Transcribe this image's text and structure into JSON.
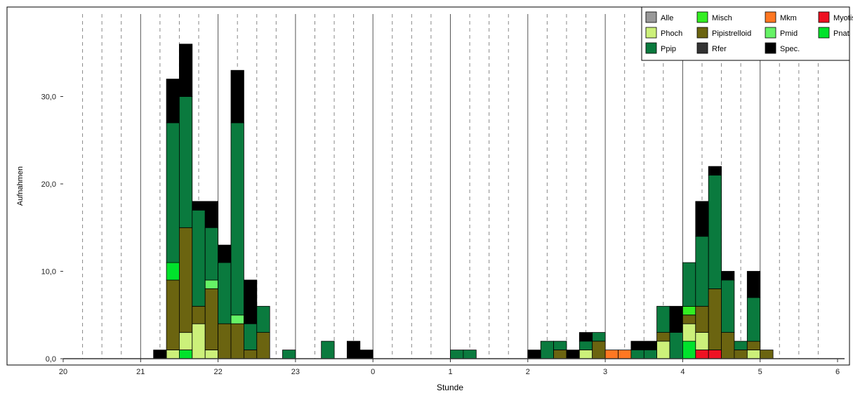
{
  "chart_data": {
    "type": "bar",
    "stacked": true,
    "title": "",
    "xlabel": "Stunde",
    "ylabel": "Aufnahmen",
    "ylim": [
      0,
      38
    ],
    "x_ticks": [
      "20",
      "21",
      "22",
      "23",
      "0",
      "1",
      "2",
      "3",
      "4",
      "5",
      "6"
    ],
    "y_ticks": [
      "0,0",
      "10,0",
      "20,0",
      "30,0"
    ],
    "y_tick_values": [
      0,
      10,
      20,
      30
    ],
    "grid": "vertical: solid at full hours, dashed every 15 min",
    "legend_position": "top-right",
    "legend": [
      {
        "name": "Alle",
        "color": "#999999"
      },
      {
        "name": "Misch",
        "color": "#33ee22"
      },
      {
        "name": "Mkm",
        "color": "#ff7722"
      },
      {
        "name": "Myotis",
        "color": "#ee1122"
      },
      {
        "name": "Phoch",
        "color": "#ccf07a"
      },
      {
        "name": "Pipistrelloid",
        "color": "#6b6410"
      },
      {
        "name": "Pmid",
        "color": "#66f266"
      },
      {
        "name": "Pnat",
        "color": "#00e22c"
      },
      {
        "name": "Ppip",
        "color": "#0a7a3e"
      },
      {
        "name": "Rfer",
        "color": "#333333"
      },
      {
        "name": "Spec.",
        "color": "#000000"
      }
    ],
    "bin_minutes": 10,
    "x_start_hour": 20,
    "bins": [
      {
        "t": "21:10",
        "stack": [
          [
            "Spec.",
            1
          ]
        ]
      },
      {
        "t": "21:20",
        "stack": [
          [
            "Phoch",
            1
          ],
          [
            "Pipistrelloid",
            8
          ],
          [
            "Pnat",
            2
          ],
          [
            "Ppip",
            16
          ],
          [
            "Spec.",
            5
          ]
        ]
      },
      {
        "t": "21:30",
        "stack": [
          [
            "Pnat",
            1
          ],
          [
            "Phoch",
            2
          ],
          [
            "Pipistrelloid",
            12
          ],
          [
            "Ppip",
            15
          ],
          [
            "Spec.",
            6
          ]
        ]
      },
      {
        "t": "21:40",
        "stack": [
          [
            "Phoch",
            4
          ],
          [
            "Pipistrelloid",
            2
          ],
          [
            "Ppip",
            11
          ],
          [
            "Spec.",
            1
          ]
        ]
      },
      {
        "t": "21:50",
        "stack": [
          [
            "Phoch",
            1
          ],
          [
            "Pipistrelloid",
            7
          ],
          [
            "Pmid",
            1
          ],
          [
            "Ppip",
            6
          ],
          [
            "Spec.",
            3
          ]
        ]
      },
      {
        "t": "22:00",
        "stack": [
          [
            "Pipistrelloid",
            4
          ],
          [
            "Ppip",
            7
          ],
          [
            "Spec.",
            2
          ]
        ]
      },
      {
        "t": "22:10",
        "stack": [
          [
            "Pipistrelloid",
            4
          ],
          [
            "Pmid",
            1
          ],
          [
            "Ppip",
            22
          ],
          [
            "Spec.",
            6
          ]
        ]
      },
      {
        "t": "22:20",
        "stack": [
          [
            "Pipistrelloid",
            1
          ],
          [
            "Ppip",
            3
          ],
          [
            "Spec.",
            5
          ]
        ]
      },
      {
        "t": "22:30",
        "stack": [
          [
            "Pipistrelloid",
            3
          ],
          [
            "Ppip",
            3
          ]
        ]
      },
      {
        "t": "22:50",
        "stack": [
          [
            "Ppip",
            1
          ]
        ]
      },
      {
        "t": "23:20",
        "stack": [
          [
            "Ppip",
            2
          ]
        ]
      },
      {
        "t": "23:40",
        "stack": [
          [
            "Spec.",
            2
          ]
        ]
      },
      {
        "t": "23:50",
        "stack": [
          [
            "Spec.",
            1
          ]
        ]
      },
      {
        "t": "01:00",
        "stack": [
          [
            "Ppip",
            1
          ]
        ]
      },
      {
        "t": "01:10",
        "stack": [
          [
            "Ppip",
            1
          ]
        ]
      },
      {
        "t": "02:00",
        "stack": [
          [
            "Spec.",
            1
          ]
        ]
      },
      {
        "t": "02:10",
        "stack": [
          [
            "Ppip",
            2
          ]
        ]
      },
      {
        "t": "02:20",
        "stack": [
          [
            "Pipistrelloid",
            1
          ],
          [
            "Ppip",
            1
          ]
        ]
      },
      {
        "t": "02:30",
        "stack": [
          [
            "Spec.",
            1
          ]
        ]
      },
      {
        "t": "02:40",
        "stack": [
          [
            "Phoch",
            1
          ],
          [
            "Ppip",
            1
          ],
          [
            "Spec.",
            1
          ]
        ]
      },
      {
        "t": "02:50",
        "stack": [
          [
            "Pipistrelloid",
            2
          ],
          [
            "Ppip",
            1
          ]
        ]
      },
      {
        "t": "03:00",
        "stack": [
          [
            "Mkm",
            1
          ]
        ]
      },
      {
        "t": "03:10",
        "stack": [
          [
            "Mkm",
            1
          ]
        ]
      },
      {
        "t": "03:20",
        "stack": [
          [
            "Ppip",
            1
          ],
          [
            "Spec.",
            1
          ]
        ]
      },
      {
        "t": "03:30",
        "stack": [
          [
            "Ppip",
            1
          ],
          [
            "Spec.",
            1
          ]
        ]
      },
      {
        "t": "03:40",
        "stack": [
          [
            "Phoch",
            2
          ],
          [
            "Pipistrelloid",
            1
          ],
          [
            "Ppip",
            3
          ]
        ]
      },
      {
        "t": "03:50",
        "stack": [
          [
            "Ppip",
            3
          ],
          [
            "Spec.",
            3
          ]
        ]
      },
      {
        "t": "04:00",
        "stack": [
          [
            "Pnat",
            2
          ],
          [
            "Phoch",
            2
          ],
          [
            "Pipistrelloid",
            1
          ],
          [
            "Misch",
            1
          ],
          [
            "Ppip",
            5
          ]
        ]
      },
      {
        "t": "04:10",
        "stack": [
          [
            "Myotis",
            1
          ],
          [
            "Phoch",
            2
          ],
          [
            "Pipistrelloid",
            3
          ],
          [
            "Ppip",
            8
          ],
          [
            "Spec.",
            4
          ]
        ]
      },
      {
        "t": "04:20",
        "stack": [
          [
            "Myotis",
            1
          ],
          [
            "Pipistrelloid",
            7
          ],
          [
            "Ppip",
            13
          ],
          [
            "Spec.",
            1
          ]
        ]
      },
      {
        "t": "04:30",
        "stack": [
          [
            "Pipistrelloid",
            3
          ],
          [
            "Ppip",
            6
          ],
          [
            "Spec.",
            1
          ]
        ]
      },
      {
        "t": "04:40",
        "stack": [
          [
            "Pipistrelloid",
            1
          ],
          [
            "Ppip",
            1
          ]
        ]
      },
      {
        "t": "04:50",
        "stack": [
          [
            "Phoch",
            1
          ],
          [
            "Pipistrelloid",
            1
          ],
          [
            "Ppip",
            5
          ],
          [
            "Spec.",
            3
          ]
        ]
      },
      {
        "t": "05:00",
        "stack": [
          [
            "Pipistrelloid",
            1
          ]
        ]
      }
    ]
  }
}
